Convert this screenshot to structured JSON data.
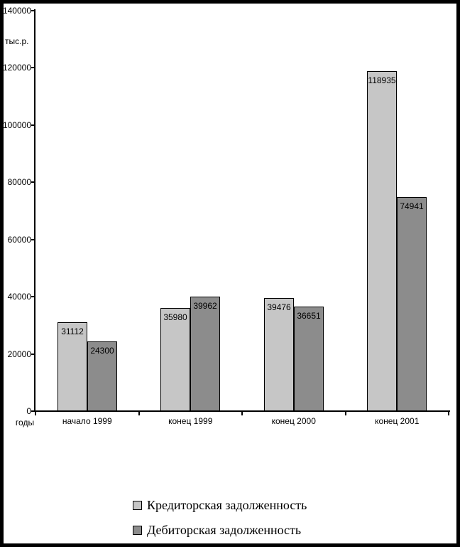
{
  "chart_data": {
    "type": "bar",
    "title": "",
    "ylabel": "тыс.р.",
    "xlabel": "годы",
    "categories": [
      "начало 1999",
      "конец 1999",
      "конец 2000",
      "конец 2001"
    ],
    "series": [
      {
        "name": "Кредиторская задолженность",
        "color": "#c6c6c6",
        "values": [
          31112,
          35980,
          39476,
          118935
        ]
      },
      {
        "name": "Дебиторская задолженность",
        "color": "#8c8c8c",
        "values": [
          24300,
          39962,
          36651,
          74941
        ]
      }
    ],
    "ylim": [
      0,
      140000
    ],
    "ytick_step": 20000,
    "yticks": [
      "0",
      "20000",
      "40000",
      "60000",
      "80000",
      "100000",
      "120000",
      "140000"
    ],
    "bar_value_labels": true,
    "grid": false,
    "legend_position": "bottom-center",
    "axis_color": "#000000",
    "bar_border_color": "#000000",
    "frame_color": "#000000"
  }
}
